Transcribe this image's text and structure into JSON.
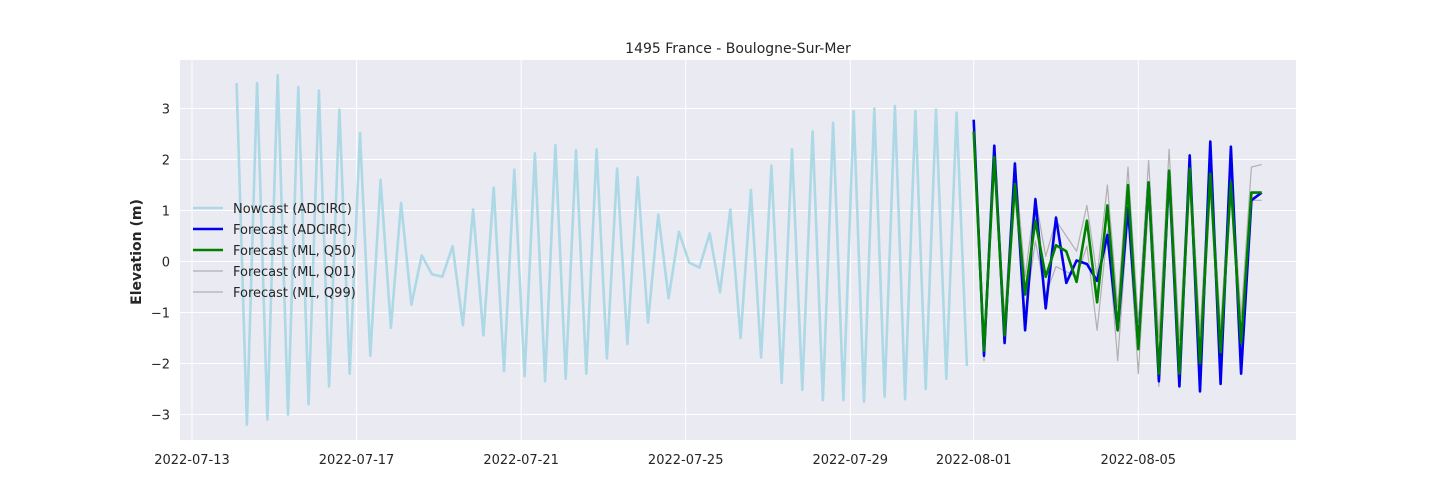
{
  "chart_data": {
    "type": "line",
    "title": "1495 France - Boulogne-Sur-Mer",
    "xlabel": "",
    "ylabel": "Elevation (m)",
    "xlim": [
      "2022-07-12T17:00",
      "2022-08-08T20:00"
    ],
    "ylim": [
      -3.5,
      3.95
    ],
    "x_ticks": [
      "2022-07-13",
      "2022-07-17",
      "2022-07-21",
      "2022-07-25",
      "2022-07-29",
      "2022-08-01",
      "2022-08-05"
    ],
    "y_ticks": [
      -3,
      -2,
      -1,
      0,
      1,
      2,
      3
    ],
    "grid": true,
    "legend_position": "center-left",
    "series": [
      {
        "name": "Nowcast (ADCIRC)",
        "color": "#add8e6",
        "x": [
          "2022-07-14T02:00",
          "2022-07-14T08:00",
          "2022-07-14T14:00",
          "2022-07-14T20:00",
          "2022-07-15T02:00",
          "2022-07-15T08:00",
          "2022-07-15T14:00",
          "2022-07-15T20:00",
          "2022-07-16T02:00",
          "2022-07-16T08:00",
          "2022-07-16T14:00",
          "2022-07-16T20:00",
          "2022-07-17T02:00",
          "2022-07-17T08:00",
          "2022-07-17T14:00",
          "2022-07-17T20:00",
          "2022-07-18T02:00",
          "2022-07-18T08:00",
          "2022-07-18T14:00",
          "2022-07-18T20:00",
          "2022-07-19T02:00",
          "2022-07-19T08:00",
          "2022-07-19T14:00",
          "2022-07-19T20:00",
          "2022-07-20T02:00",
          "2022-07-20T08:00",
          "2022-07-20T14:00",
          "2022-07-20T20:00",
          "2022-07-21T02:00",
          "2022-07-21T08:00",
          "2022-07-21T14:00",
          "2022-07-21T20:00",
          "2022-07-22T02:00",
          "2022-07-22T08:00",
          "2022-07-22T14:00",
          "2022-07-22T20:00",
          "2022-07-23T02:00",
          "2022-07-23T08:00",
          "2022-07-23T14:00",
          "2022-07-23T20:00",
          "2022-07-24T02:00",
          "2022-07-24T08:00",
          "2022-07-24T14:00",
          "2022-07-24T20:00",
          "2022-07-25T02:00",
          "2022-07-25T08:00",
          "2022-07-25T14:00",
          "2022-07-25T20:00",
          "2022-07-26T02:00",
          "2022-07-26T08:00",
          "2022-07-26T14:00",
          "2022-07-26T20:00",
          "2022-07-27T02:00",
          "2022-07-27T08:00",
          "2022-07-27T14:00",
          "2022-07-27T20:00",
          "2022-07-28T02:00",
          "2022-07-28T08:00",
          "2022-07-28T14:00",
          "2022-07-28T20:00",
          "2022-07-29T02:00",
          "2022-07-29T08:00",
          "2022-07-29T14:00",
          "2022-07-29T20:00",
          "2022-07-30T02:00",
          "2022-07-30T08:00",
          "2022-07-30T14:00",
          "2022-07-30T20:00",
          "2022-07-31T02:00",
          "2022-07-31T08:00",
          "2022-07-31T14:00",
          "2022-07-31T20:00"
        ],
        "values": [
          3.5,
          -3.2,
          3.5,
          -3.1,
          3.65,
          -3.0,
          3.42,
          -2.8,
          3.35,
          -2.45,
          2.98,
          -2.2,
          2.52,
          -1.85,
          1.6,
          -1.3,
          1.15,
          -0.85,
          0.12,
          -0.25,
          -0.3,
          0.3,
          -1.25,
          1.02,
          -1.45,
          1.45,
          -2.15,
          1.8,
          -2.25,
          2.12,
          -2.35,
          2.28,
          -2.3,
          2.18,
          -2.2,
          2.2,
          -1.9,
          1.82,
          -1.62,
          1.65,
          -1.2,
          0.92,
          -0.72,
          0.58,
          -0.02,
          -0.12,
          0.55,
          -0.6,
          1.02,
          -1.5,
          1.4,
          -1.88,
          1.88,
          -2.38,
          2.2,
          -2.52,
          2.55,
          -2.72,
          2.72,
          -2.72,
          2.95,
          -2.75,
          3.0,
          -2.65,
          3.05,
          -2.7,
          2.95,
          -2.5,
          2.98,
          -2.3,
          2.92,
          -2.05
        ]
      },
      {
        "name": "Forecast (ADCIRC)",
        "color": "#0000ee",
        "x": [
          "2022-08-01T00:00",
          "2022-08-01T06:00",
          "2022-08-01T12:00",
          "2022-08-01T18:00",
          "2022-08-02T00:00",
          "2022-08-02T06:00",
          "2022-08-02T12:00",
          "2022-08-02T18:00",
          "2022-08-03T00:00",
          "2022-08-03T06:00",
          "2022-08-03T12:00",
          "2022-08-03T18:00",
          "2022-08-04T00:00",
          "2022-08-04T06:00",
          "2022-08-04T12:00",
          "2022-08-04T18:00",
          "2022-08-05T00:00",
          "2022-08-05T06:00",
          "2022-08-05T12:00",
          "2022-08-05T18:00",
          "2022-08-06T00:00",
          "2022-08-06T06:00",
          "2022-08-06T12:00",
          "2022-08-06T18:00",
          "2022-08-07T00:00",
          "2022-08-07T06:00",
          "2022-08-07T12:00",
          "2022-08-07T18:00",
          "2022-08-08T00:00"
        ],
        "values": [
          2.78,
          -1.85,
          2.27,
          -1.6,
          1.92,
          -1.35,
          1.22,
          -0.92,
          0.86,
          -0.42,
          0.02,
          -0.05,
          -0.38,
          0.52,
          -1.35,
          1.05,
          -1.65,
          1.55,
          -2.35,
          1.75,
          -2.45,
          2.08,
          -2.55,
          2.35,
          -2.4,
          2.25,
          -2.2,
          1.2,
          1.35
        ]
      },
      {
        "name": "Forecast (ML, Q50)",
        "color": "#008000",
        "x": [
          "2022-08-01T00:00",
          "2022-08-01T06:00",
          "2022-08-01T12:00",
          "2022-08-01T18:00",
          "2022-08-02T00:00",
          "2022-08-02T06:00",
          "2022-08-02T12:00",
          "2022-08-02T18:00",
          "2022-08-03T00:00",
          "2022-08-03T06:00",
          "2022-08-03T12:00",
          "2022-08-03T18:00",
          "2022-08-04T00:00",
          "2022-08-04T06:00",
          "2022-08-04T12:00",
          "2022-08-04T18:00",
          "2022-08-05T00:00",
          "2022-08-05T06:00",
          "2022-08-05T12:00",
          "2022-08-05T18:00",
          "2022-08-06T00:00",
          "2022-08-06T06:00",
          "2022-08-06T12:00",
          "2022-08-06T18:00",
          "2022-08-07T00:00",
          "2022-08-07T06:00",
          "2022-08-07T12:00",
          "2022-08-07T18:00",
          "2022-08-08T00:00"
        ],
        "values": [
          2.55,
          -1.75,
          2.05,
          -1.45,
          1.52,
          -0.65,
          0.8,
          -0.3,
          0.32,
          0.2,
          -0.4,
          0.8,
          -0.8,
          1.1,
          -1.35,
          1.5,
          -1.72,
          1.55,
          -2.2,
          1.78,
          -2.2,
          1.82,
          -2.0,
          1.72,
          -1.78,
          1.55,
          -1.6,
          1.35,
          1.35
        ]
      },
      {
        "name": "Forecast (ML, Q01)",
        "color": "#b0b0b0",
        "x": [
          "2022-08-01T00:00",
          "2022-08-01T06:00",
          "2022-08-01T12:00",
          "2022-08-01T18:00",
          "2022-08-02T00:00",
          "2022-08-02T06:00",
          "2022-08-02T12:00",
          "2022-08-02T18:00",
          "2022-08-03T00:00",
          "2022-08-03T06:00",
          "2022-08-03T12:00",
          "2022-08-03T18:00",
          "2022-08-04T00:00",
          "2022-08-04T06:00",
          "2022-08-04T12:00",
          "2022-08-04T18:00",
          "2022-08-05T00:00",
          "2022-08-05T06:00",
          "2022-08-05T12:00",
          "2022-08-05T18:00",
          "2022-08-06T00:00",
          "2022-08-06T06:00",
          "2022-08-06T12:00",
          "2022-08-06T18:00",
          "2022-08-07T00:00",
          "2022-08-07T06:00",
          "2022-08-07T12:00",
          "2022-08-07T18:00",
          "2022-08-08T00:00"
        ],
        "values": [
          2.4,
          -1.95,
          1.9,
          -1.5,
          1.3,
          -1.0,
          0.4,
          -0.65,
          -0.1,
          -0.2,
          -0.3,
          0.3,
          -1.35,
          0.6,
          -1.95,
          0.9,
          -2.2,
          1.2,
          -2.45,
          1.4,
          -2.4,
          1.5,
          -2.3,
          1.4,
          -2.0,
          1.3,
          -1.7,
          1.2,
          1.2
        ]
      },
      {
        "name": "Forecast (ML, Q99)",
        "color": "#b0b0b0",
        "x": [
          "2022-08-01T00:00",
          "2022-08-01T06:00",
          "2022-08-01T12:00",
          "2022-08-01T18:00",
          "2022-08-02T00:00",
          "2022-08-02T06:00",
          "2022-08-02T12:00",
          "2022-08-02T18:00",
          "2022-08-03T00:00",
          "2022-08-03T06:00",
          "2022-08-03T12:00",
          "2022-08-03T18:00",
          "2022-08-04T00:00",
          "2022-08-04T06:00",
          "2022-08-04T12:00",
          "2022-08-04T18:00",
          "2022-08-05T00:00",
          "2022-08-05T06:00",
          "2022-08-05T12:00",
          "2022-08-05T18:00",
          "2022-08-06T00:00",
          "2022-08-06T06:00",
          "2022-08-06T12:00",
          "2022-08-06T18:00",
          "2022-08-07T00:00",
          "2022-08-07T06:00",
          "2022-08-07T12:00",
          "2022-08-07T18:00",
          "2022-08-08T00:00"
        ],
        "values": [
          2.65,
          -1.5,
          2.25,
          -1.1,
          1.95,
          -0.3,
          1.25,
          0.1,
          0.8,
          0.5,
          0.2,
          1.1,
          -0.3,
          1.5,
          -0.9,
          1.85,
          -1.2,
          1.98,
          -1.5,
          2.2,
          -1.55,
          2.1,
          -1.4,
          2.0,
          -1.3,
          1.85,
          -1.1,
          1.85,
          1.9
        ]
      }
    ]
  }
}
